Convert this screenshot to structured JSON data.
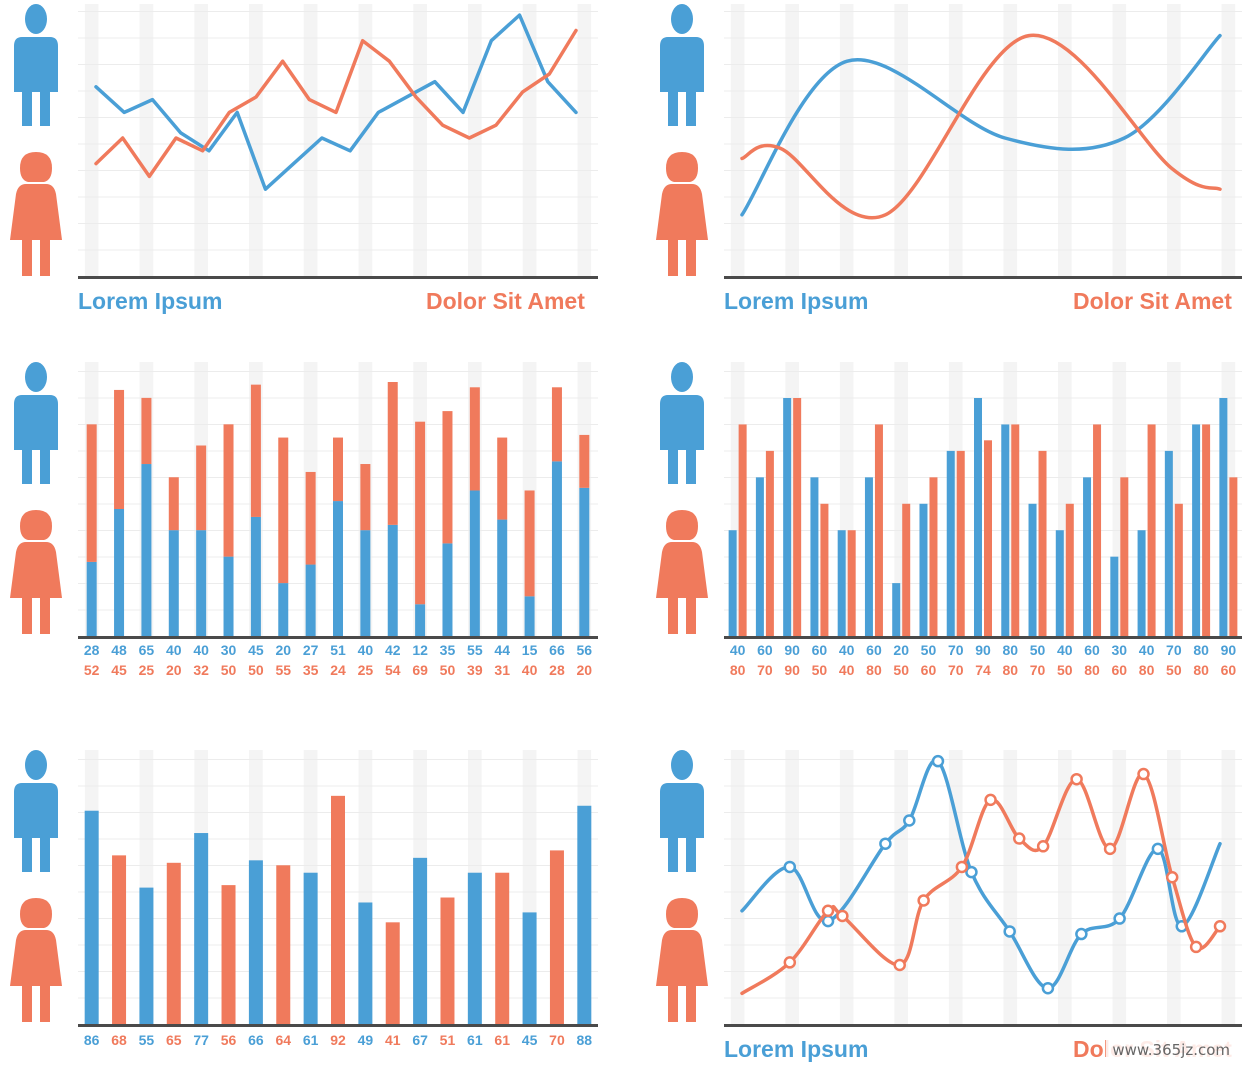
{
  "colors": {
    "blue": "#4a9fd6",
    "red": "#f07a5c",
    "axis": "#4a4a4a",
    "grid": "#ececec"
  },
  "icons": {
    "male": "male-person-icon",
    "female": "female-person-icon"
  },
  "captions": {
    "left": "Lorem Ipsum",
    "right": "Dolor Sit Amet"
  },
  "watermark": "www.365jz.com",
  "chart_data": [
    {
      "id": "line-zigzag",
      "type": "line",
      "series": [
        {
          "color": "blue",
          "values": [
            70,
            60,
            65,
            52,
            45,
            60,
            30,
            40,
            50,
            45,
            60,
            66,
            72,
            60,
            88,
            98,
            72,
            60
          ]
        },
        {
          "color": "red",
          "values": [
            40,
            50,
            35,
            50,
            45,
            60,
            66,
            80,
            65,
            60,
            88,
            80,
            66,
            55,
            50,
            55,
            68,
            75,
            92
          ]
        }
      ],
      "ylim": [
        0,
        100
      ]
    },
    {
      "id": "smooth-curves",
      "type": "line",
      "smooth": true,
      "series": [
        {
          "color": "blue",
          "points": [
            [
              0,
              20
            ],
            [
              0.22,
              80
            ],
            [
              0.55,
              50
            ],
            [
              0.8,
              50
            ],
            [
              1,
              90
            ]
          ]
        },
        {
          "color": "red",
          "points": [
            [
              0,
              42
            ],
            [
              0.08,
              46
            ],
            [
              0.3,
              20
            ],
            [
              0.6,
              90
            ],
            [
              0.9,
              38
            ],
            [
              1,
              30
            ]
          ]
        }
      ],
      "ylim": [
        0,
        100
      ]
    },
    {
      "id": "stacked-bars",
      "type": "bar",
      "stacked": true,
      "blue_values": [
        28,
        48,
        65,
        40,
        40,
        30,
        45,
        20,
        27,
        51,
        40,
        42,
        12,
        35,
        55,
        44,
        15,
        66,
        56
      ],
      "red_values": [
        52,
        45,
        25,
        20,
        32,
        50,
        50,
        55,
        35,
        24,
        25,
        54,
        69,
        50,
        39,
        31,
        40,
        28,
        20
      ],
      "ylim": [
        0,
        96
      ]
    },
    {
      "id": "grouped-bars",
      "type": "bar",
      "grouped": true,
      "blue_values": [
        40,
        60,
        90,
        60,
        40,
        60,
        20,
        50,
        70,
        90,
        80,
        50,
        40,
        60,
        30,
        40,
        70,
        80,
        90
      ],
      "red_values": [
        80,
        70,
        90,
        50,
        40,
        80,
        50,
        60,
        70,
        74,
        80,
        70,
        50,
        80,
        60,
        80,
        50,
        80,
        60
      ],
      "ylim": [
        0,
        90
      ]
    },
    {
      "id": "alternating-bars",
      "type": "bar",
      "values": [
        86,
        68,
        55,
        65,
        77,
        56,
        66,
        64,
        61,
        92,
        49,
        41,
        67,
        51,
        61,
        61,
        45,
        70,
        88
      ],
      "colors": [
        "blue",
        "red",
        "blue",
        "red",
        "blue",
        "red",
        "blue",
        "red",
        "blue",
        "red",
        "blue",
        "red",
        "blue",
        "red",
        "blue",
        "red",
        "blue",
        "red",
        "blue"
      ],
      "ylim": [
        0,
        100
      ]
    },
    {
      "id": "wave-curves",
      "type": "line",
      "smooth": true,
      "series": [
        {
          "color": "blue",
          "points": [
            [
              0,
              40
            ],
            [
              0.1,
              57
            ],
            [
              0.18,
              36
            ],
            [
              0.3,
              66
            ],
            [
              0.35,
              75
            ],
            [
              0.41,
              98
            ],
            [
              0.48,
              55
            ],
            [
              0.56,
              32
            ],
            [
              0.64,
              10
            ],
            [
              0.71,
              31
            ],
            [
              0.79,
              37
            ],
            [
              0.87,
              64
            ],
            [
              0.92,
              34
            ],
            [
              1,
              66
            ]
          ],
          "markers": [
            1,
            2,
            3,
            4,
            5,
            6,
            7,
            8,
            9,
            10,
            11,
            12
          ]
        },
        {
          "color": "red",
          "points": [
            [
              0,
              8
            ],
            [
              0.1,
              20
            ],
            [
              0.18,
              40
            ],
            [
              0.21,
              38
            ],
            [
              0.33,
              19
            ],
            [
              0.38,
              44
            ],
            [
              0.46,
              57
            ],
            [
              0.52,
              83
            ],
            [
              0.58,
              68
            ],
            [
              0.63,
              65
            ],
            [
              0.7,
              91
            ],
            [
              0.77,
              64
            ],
            [
              0.84,
              93
            ],
            [
              0.9,
              53
            ],
            [
              0.95,
              26
            ],
            [
              1,
              34
            ]
          ],
          "markers": [
            1,
            2,
            3,
            4,
            5,
            6,
            7,
            8,
            9,
            10,
            11,
            12,
            13,
            14,
            15
          ]
        }
      ],
      "ylim": [
        0,
        100
      ]
    }
  ]
}
